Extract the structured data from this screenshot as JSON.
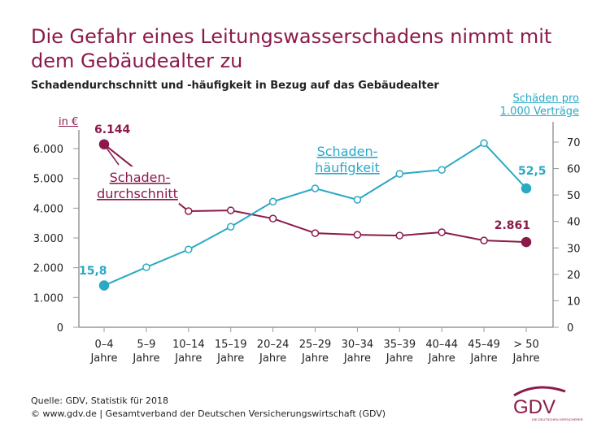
{
  "title": "Die Gefahr eines Leitungswasserschadens nimmt mit dem Gebäudealter zu",
  "subtitle": "Schadendurchschnitt und -häufigkeit in Bezug auf das Gebäudealter",
  "source_line1": "Quelle: GDV, Statistik für 2018",
  "source_line2": "© www.gdv.de | Gesamtverband der Deutschen Versicherungswirtschaft (GDV)",
  "logo": {
    "text": "GDV",
    "tagline": "DIE DEUTSCHEN VERSICHERER"
  },
  "colors": {
    "maroon": "#8b1a4a",
    "cyan": "#2aa9c4"
  },
  "chart_data": {
    "type": "line",
    "categories": [
      [
        "0–4",
        "Jahre"
      ],
      [
        "5–9",
        "Jahre"
      ],
      [
        "10–14",
        "Jahre"
      ],
      [
        "15–19",
        "Jahre"
      ],
      [
        "20–24",
        "Jahre"
      ],
      [
        "25–29",
        "Jahre"
      ],
      [
        "30–34",
        "Jahre"
      ],
      [
        "35–39",
        "Jahre"
      ],
      [
        "40–44",
        "Jahre"
      ],
      [
        "45–49",
        "Jahre"
      ],
      [
        "> 50",
        "Jahre"
      ]
    ],
    "left_axis": {
      "label": "in €",
      "ylim": [
        0,
        6000
      ],
      "ticks": [
        "0",
        "1.000",
        "2.000",
        "3.000",
        "4.000",
        "5.000",
        "6.000"
      ]
    },
    "right_axis": {
      "label_line1": "Schäden pro",
      "label_line2": "1.000 Verträge",
      "ylim": [
        0,
        70
      ],
      "ticks": [
        "0",
        "10",
        "20",
        "30",
        "40",
        "50",
        "60",
        "70"
      ]
    },
    "series": [
      {
        "name_line1": "Schaden-",
        "name_line2": "durchschnitt",
        "axis": "left",
        "values": [
          6144,
          null,
          3900,
          3925,
          3650,
          3160,
          3105,
          3080,
          3190,
          2915,
          2861
        ],
        "first_label": "6.144",
        "last_label": "2.861"
      },
      {
        "name_line1": "Schaden-",
        "name_line2": "häufigkeit",
        "axis": "right",
        "values": [
          15.8,
          22.7,
          29.4,
          38.0,
          47.5,
          52.5,
          48.2,
          58.0,
          59.5,
          69.6,
          52.5
        ],
        "first_label": "15,8",
        "last_label": "52,5"
      }
    ]
  }
}
